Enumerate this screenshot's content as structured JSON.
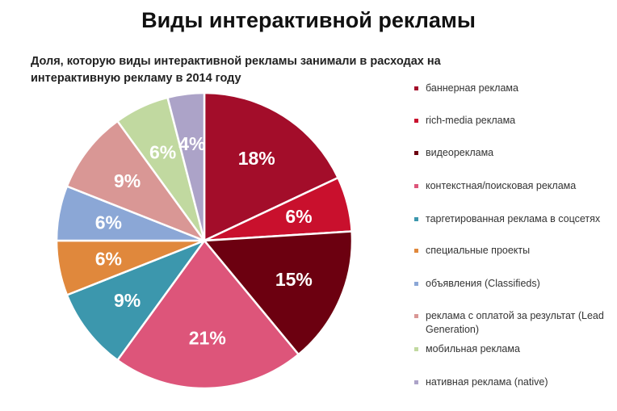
{
  "chart_data": {
    "type": "pie",
    "title": "Виды интерактивной рекламы",
    "subtitle": "Доля, которую виды интерактивной рекламы занимали в расходах на интерактивную рекламу в 2014 году",
    "slices": [
      {
        "label": "баннерная реклама",
        "value": 18,
        "value_label": "18%",
        "color": "#a30d2a"
      },
      {
        "label": "rich-media реклама",
        "value": 6,
        "value_label": "6%",
        "color": "#c9102d"
      },
      {
        "label": "видеореклама",
        "value": 15,
        "value_label": "15%",
        "color": "#6c0010"
      },
      {
        "label": "контекстная/поисковая реклама",
        "value": 21,
        "value_label": "21%",
        "color": "#dd557a"
      },
      {
        "label": "таргетированная реклама в соцсетях",
        "value": 9,
        "value_label": "9%",
        "color": "#3c97ad"
      },
      {
        "label": "специальные проекты",
        "value": 6,
        "value_label": "6%",
        "color": "#e0883c"
      },
      {
        "label": "объявления (Classifieds)",
        "value": 6,
        "value_label": "6%",
        "color": "#8ba7d6"
      },
      {
        "label": "реклама с оплатой за результат (Lead Generation)",
        "value": 9,
        "value_label": "9%",
        "color": "#d99795"
      },
      {
        "label": "мобильная реклама",
        "value": 6,
        "value_label": "6%",
        "color": "#c1d9a0"
      },
      {
        "label": "нативная реклама (native)",
        "value": 4,
        "value_label": "4%",
        "color": "#aca3c8"
      }
    ],
    "legend_position": "right"
  }
}
